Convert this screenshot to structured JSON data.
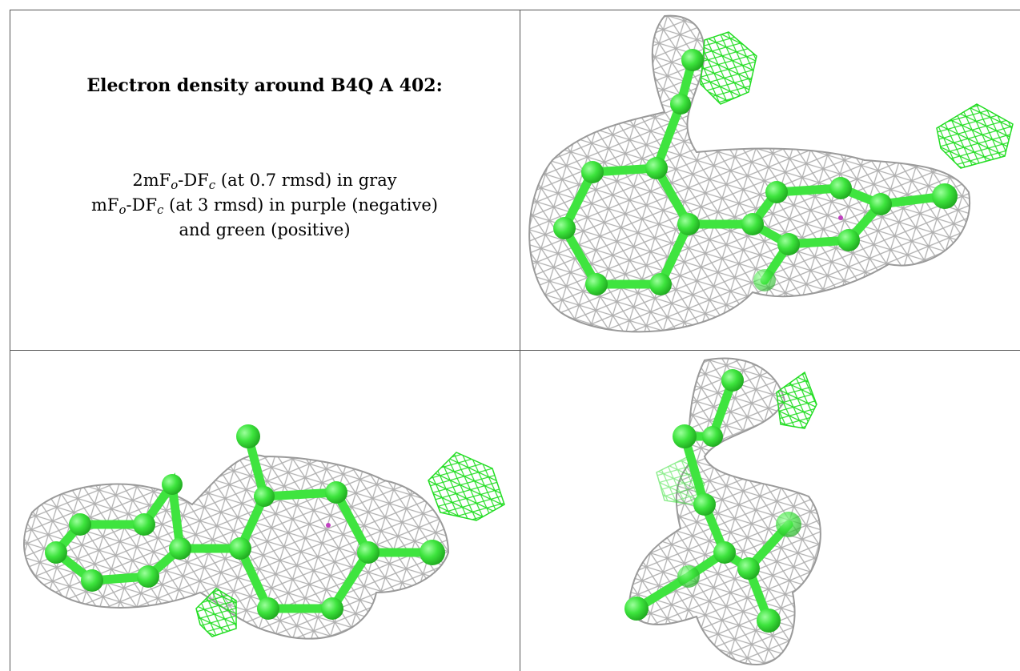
{
  "title": "Electron density around B4Q A 402:",
  "caption": {
    "lines": [
      [
        "2mF",
        "o",
        "-DF",
        "c",
        " (at 0.7 rmsd) in gray"
      ],
      [
        "mF",
        "o",
        "-DF",
        "c",
        " (at 3 rmsd) in purple (negative)"
      ],
      [
        "and green (positive)"
      ]
    ]
  }
}
